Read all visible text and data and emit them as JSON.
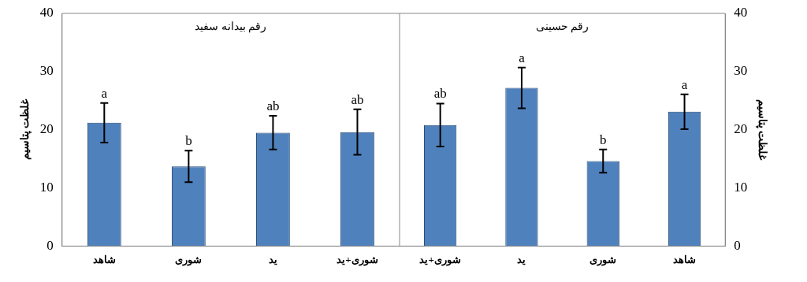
{
  "chart_data": [
    {
      "type": "bar",
      "title": "رقم بیدانه سفید",
      "ylabel": "غلظت پتاسیم",
      "categories": [
        "شاهد",
        "شوری",
        "ید",
        "شوری+ید"
      ],
      "series": [
        {
          "color": "#4f81bd",
          "values": [
            21.2,
            13.7,
            19.5,
            19.6
          ],
          "errors": [
            3.4,
            2.7,
            2.9,
            3.9
          ]
        }
      ],
      "ylim": [
        0,
        40
      ],
      "yticks": [
        0,
        10,
        20,
        30,
        40
      ],
      "grid": false,
      "legend": false,
      "annotations": [
        {
          "text": "a",
          "x": "شاهد",
          "y": 24.6
        },
        {
          "text": "b",
          "x": "شوری",
          "y": 16.4
        },
        {
          "text": "ab",
          "x": "ید",
          "y": 22.4
        },
        {
          "text": "ab",
          "x": "شوری+ید",
          "y": 23.5
        }
      ]
    },
    {
      "type": "bar",
      "title": "رقم حسینی",
      "ylabel": "غلظت پتاسیم",
      "categories": [
        "شوری+ید",
        "ید",
        "شوری",
        "شاهد"
      ],
      "series": [
        {
          "color": "#4f81bd",
          "values": [
            20.8,
            27.2,
            14.6,
            23.1
          ],
          "errors": [
            3.7,
            3.5,
            2.0,
            3.0
          ]
        }
      ],
      "ylim": [
        0,
        40
      ],
      "yticks": [
        0,
        10,
        20,
        30,
        40
      ],
      "grid": false,
      "legend": false,
      "annotations": [
        {
          "text": "ab",
          "x": "شوری+ید",
          "y": 24.5
        },
        {
          "text": "a",
          "x": "ید",
          "y": 30.7
        },
        {
          "text": "b",
          "x": "شوری",
          "y": 16.6
        },
        {
          "text": "a",
          "x": "شاهد",
          "y": 26.1
        }
      ]
    }
  ]
}
